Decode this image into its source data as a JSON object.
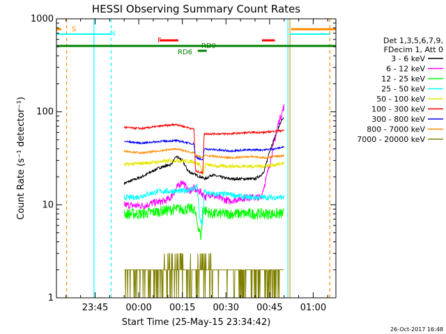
{
  "chart_data": {
    "type": "line",
    "title": "HESSI Observing Summary Count Rates",
    "xlabel": "Start Time (25-May-15 23:34:42)",
    "ylabel": "Count Rate (s⁻¹ detector⁻¹)",
    "y_scale": "log",
    "ylim": [
      1,
      1000
    ],
    "y_ticks": [
      "1",
      "10",
      "100",
      "1000"
    ],
    "x_tick_labels": [
      "23:45",
      "00:00",
      "00:15",
      "00:30",
      "00:45",
      "01:00"
    ],
    "x_ticks_minutes": [
      -10,
      5,
      20,
      35,
      50,
      65
    ],
    "xlim_minutes": [
      -23.3,
      72.8
    ],
    "legend_header": [
      "Det 1,3,5,6,7,9,",
      "FDecim 1, Att 0"
    ],
    "series": [
      {
        "name": "3 - 6 keV",
        "color": "#000000",
        "points": [
          [
            0,
            17
          ],
          [
            6,
            20
          ],
          [
            12,
            25
          ],
          [
            16,
            27
          ],
          [
            18,
            33
          ],
          [
            20,
            30
          ],
          [
            22,
            23
          ],
          [
            24.5,
            21
          ],
          [
            28,
            19
          ],
          [
            30,
            21
          ],
          [
            36,
            19
          ],
          [
            45,
            19
          ],
          [
            48,
            22
          ],
          [
            50,
            38
          ],
          [
            52,
            55
          ],
          [
            54,
            80
          ],
          [
            55,
            85
          ]
        ]
      },
      {
        "name": "6 - 12 keV",
        "color": "#ff00ff",
        "points": [
          [
            0,
            10
          ],
          [
            4,
            9.8
          ],
          [
            7,
            9.8
          ],
          [
            10,
            10.5
          ],
          [
            14,
            11
          ],
          [
            16,
            12
          ],
          [
            18,
            15
          ],
          [
            20,
            18
          ],
          [
            22,
            14
          ],
          [
            24,
            15
          ],
          [
            25,
            14
          ],
          [
            26,
            14
          ],
          [
            27,
            13
          ],
          [
            28,
            12
          ],
          [
            29,
            13
          ],
          [
            30,
            13
          ],
          [
            32,
            12
          ],
          [
            36,
            11
          ],
          [
            42,
            12
          ],
          [
            47,
            12
          ],
          [
            49,
            20
          ],
          [
            51,
            38
          ],
          [
            53,
            75
          ],
          [
            55,
            115
          ]
        ]
      },
      {
        "name": "12 - 25 keV",
        "color": "#00ff00",
        "points": [
          [
            0,
            8
          ],
          [
            6,
            8
          ],
          [
            12,
            8.5
          ],
          [
            18,
            9
          ],
          [
            24,
            9
          ],
          [
            26,
            5
          ],
          [
            26.5,
            4.5
          ],
          [
            27,
            9
          ],
          [
            30,
            8
          ],
          [
            36,
            8
          ],
          [
            42,
            8
          ],
          [
            48,
            8
          ],
          [
            52,
            8
          ],
          [
            55,
            8
          ]
        ]
      },
      {
        "name": "25 - 50 keV",
        "color": "#00ffff",
        "points": [
          [
            0,
            12
          ],
          [
            4,
            12
          ],
          [
            8,
            13
          ],
          [
            12,
            14
          ],
          [
            16,
            14
          ],
          [
            20,
            14
          ],
          [
            22,
            14.5
          ],
          [
            24,
            15
          ],
          [
            25,
            16
          ],
          [
            26,
            7
          ],
          [
            27,
            6
          ],
          [
            27.5,
            14
          ],
          [
            30,
            13
          ],
          [
            36,
            13
          ],
          [
            42,
            12
          ],
          [
            48,
            12
          ],
          [
            52,
            12
          ],
          [
            55,
            12
          ]
        ]
      },
      {
        "name": "50 - 100 keV",
        "color": "#e6e600",
        "points": [
          [
            0,
            27
          ],
          [
            6,
            28
          ],
          [
            12,
            29
          ],
          [
            18,
            30
          ],
          [
            24,
            29
          ],
          [
            26,
            27
          ],
          [
            27,
            22
          ],
          [
            28,
            27
          ],
          [
            32,
            26
          ],
          [
            40,
            26
          ],
          [
            48,
            26
          ],
          [
            52,
            27
          ],
          [
            55,
            28
          ]
        ]
      },
      {
        "name": "100 - 300 keV",
        "color": "#ff0000",
        "points": [
          [
            0,
            68
          ],
          [
            6,
            66
          ],
          [
            12,
            70
          ],
          [
            18,
            73
          ],
          [
            24,
            65
          ],
          [
            24.5,
            23
          ],
          [
            27,
            22
          ],
          [
            27.5,
            58
          ],
          [
            36,
            58
          ],
          [
            44,
            60
          ],
          [
            48,
            60
          ],
          [
            52,
            62
          ],
          [
            55,
            63
          ]
        ]
      },
      {
        "name": "300 - 800 keV",
        "color": "#0000ff",
        "points": [
          [
            0,
            48
          ],
          [
            6,
            46
          ],
          [
            12,
            48
          ],
          [
            18,
            49
          ],
          [
            24,
            45
          ],
          [
            24.5,
            33
          ],
          [
            27,
            30
          ],
          [
            27.5,
            40
          ],
          [
            36,
            38
          ],
          [
            44,
            39
          ],
          [
            48,
            39
          ],
          [
            52,
            40
          ],
          [
            55,
            42
          ]
        ]
      },
      {
        "name": "800 - 7000 keV",
        "color": "#ff8c00",
        "points": [
          [
            0,
            38
          ],
          [
            6,
            36
          ],
          [
            12,
            38
          ],
          [
            18,
            40
          ],
          [
            24,
            36
          ],
          [
            24.5,
            34
          ],
          [
            27,
            32
          ],
          [
            27.5,
            34
          ],
          [
            36,
            32
          ],
          [
            44,
            33
          ],
          [
            48,
            32
          ],
          [
            52,
            33
          ],
          [
            55,
            34
          ]
        ]
      },
      {
        "name": "7000 - 20000 keV",
        "color": "#808000",
        "points": [
          [
            0,
            2
          ],
          [
            5,
            2
          ],
          [
            10,
            2
          ],
          [
            15,
            2
          ],
          [
            20,
            2
          ],
          [
            25,
            2
          ],
          [
            30,
            2
          ],
          [
            35,
            2
          ],
          [
            40,
            2
          ],
          [
            45,
            2
          ],
          [
            50,
            2
          ],
          [
            55,
            2
          ]
        ]
      }
    ],
    "flags": {
      "S": "S",
      "N": "N",
      "F": "F",
      "RD6": "RD6",
      "RD9": "RD9"
    },
    "timestamp": "26-Oct-2017 16:48"
  }
}
